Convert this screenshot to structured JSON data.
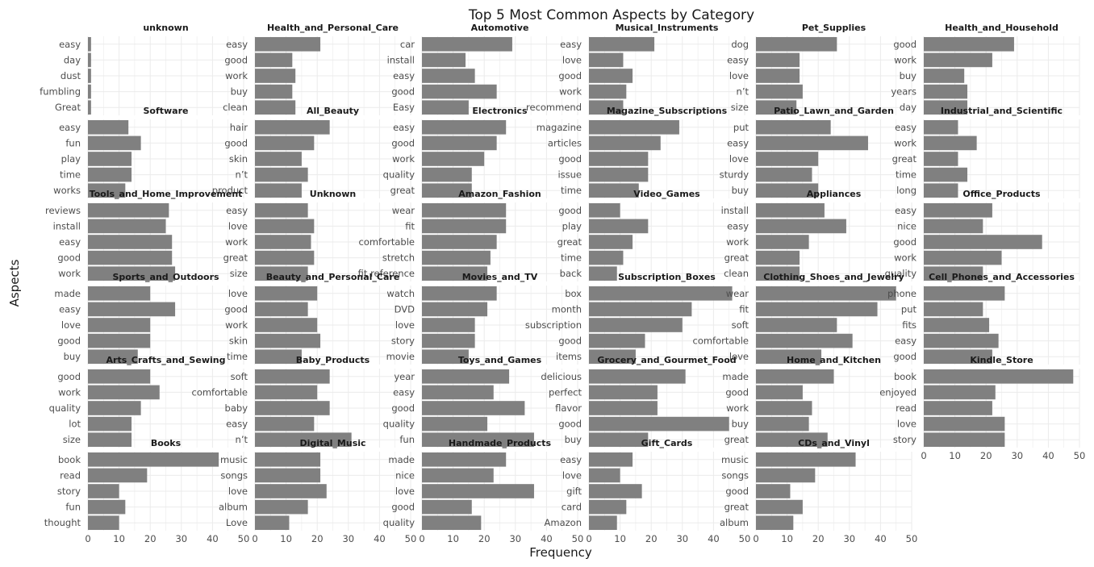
{
  "chart_data": {
    "type": "bar",
    "orientation": "horizontal",
    "title": "Top 5 Most Common Aspects by Category",
    "xlabel": "Frequency",
    "ylabel": "Aspects",
    "xlim": [
      0,
      50
    ],
    "x_ticks": [
      0,
      10,
      20,
      30,
      40,
      50
    ],
    "grid": true,
    "bar_color": "#808080",
    "grid_color": "#ebebeb",
    "facets": [
      {
        "title": "unknown",
        "categories": [
          "easy",
          "day",
          "dust",
          "fumbling",
          "Great"
        ],
        "values": [
          1,
          1,
          1,
          1,
          1
        ]
      },
      {
        "title": "Health_and_Personal_Care",
        "categories": [
          "easy",
          "good",
          "work",
          "buy",
          "clean"
        ],
        "values": [
          21,
          12,
          13,
          12,
          13
        ]
      },
      {
        "title": "Automotive",
        "categories": [
          "car",
          "install",
          "easy",
          "good",
          "Easy"
        ],
        "values": [
          29,
          14,
          17,
          24,
          15
        ]
      },
      {
        "title": "Musical_Instruments",
        "categories": [
          "easy",
          "love",
          "good",
          "work",
          "recommend"
        ],
        "values": [
          21,
          11,
          14,
          12,
          11
        ]
      },
      {
        "title": "Pet_Supplies",
        "categories": [
          "dog",
          "easy",
          "love",
          "n’t",
          "size"
        ],
        "values": [
          26,
          14,
          14,
          15,
          13
        ]
      },
      {
        "title": "Health_and_Household",
        "categories": [
          "good",
          "work",
          "buy",
          "years",
          "day"
        ],
        "values": [
          29,
          22,
          13,
          14,
          14
        ]
      },
      {
        "title": "Software",
        "categories": [
          "easy",
          "fun",
          "play",
          "time",
          "works"
        ],
        "values": [
          13,
          17,
          14,
          14,
          12
        ]
      },
      {
        "title": "All_Beauty",
        "categories": [
          "hair",
          "good",
          "skin",
          "n’t",
          "product"
        ],
        "values": [
          24,
          19,
          15,
          17,
          15
        ]
      },
      {
        "title": "Electronics",
        "categories": [
          "easy",
          "good",
          "work",
          "quality",
          "great"
        ],
        "values": [
          27,
          24,
          20,
          16,
          16
        ]
      },
      {
        "title": "Magazine_Subscriptions",
        "categories": [
          "magazine",
          "articles",
          "good",
          "issue",
          "time"
        ],
        "values": [
          29,
          23,
          19,
          19,
          16
        ]
      },
      {
        "title": "Patio_Lawn_and_Garden",
        "categories": [
          "put",
          "easy",
          "love",
          "sturdy",
          "buy"
        ],
        "values": [
          24,
          36,
          20,
          18,
          20
        ]
      },
      {
        "title": "Industrial_and_Scientific",
        "categories": [
          "easy",
          "work",
          "great",
          "time",
          "long"
        ],
        "values": [
          11,
          17,
          11,
          14,
          11
        ]
      },
      {
        "title": "Tools_and_Home_Improvement",
        "categories": [
          "reviews",
          "install",
          "easy",
          "good",
          "work"
        ],
        "values": [
          26,
          25,
          27,
          27,
          28
        ]
      },
      {
        "title": "Unknown",
        "categories": [
          "easy",
          "love",
          "work",
          "great",
          "size"
        ],
        "values": [
          17,
          19,
          18,
          19,
          17
        ]
      },
      {
        "title": "Amazon_Fashion",
        "categories": [
          "wear",
          "fit",
          "comfortable",
          "stretch",
          "fit reference"
        ],
        "values": [
          27,
          27,
          24,
          22,
          21
        ]
      },
      {
        "title": "Video_Games",
        "categories": [
          "good",
          "play",
          "great",
          "time",
          "back"
        ],
        "values": [
          10,
          19,
          14,
          11,
          9
        ]
      },
      {
        "title": "Appliances",
        "categories": [
          "install",
          "easy",
          "work",
          "great",
          "clean"
        ],
        "values": [
          22,
          29,
          17,
          14,
          14
        ]
      },
      {
        "title": "Office_Products",
        "categories": [
          "easy",
          "nice",
          "good",
          "work",
          "quality"
        ],
        "values": [
          22,
          19,
          38,
          25,
          19
        ]
      },
      {
        "title": "Sports_and_Outdoors",
        "categories": [
          "made",
          "easy",
          "love",
          "good",
          "buy"
        ],
        "values": [
          20,
          28,
          20,
          20,
          16
        ]
      },
      {
        "title": "Beauty_and_Personal_Care",
        "categories": [
          "love",
          "good",
          "work",
          "skin",
          "time"
        ],
        "values": [
          20,
          17,
          20,
          21,
          15
        ]
      },
      {
        "title": "Movies_and_TV",
        "categories": [
          "watch",
          "DVD",
          "love",
          "story",
          "movie"
        ],
        "values": [
          24,
          21,
          17,
          17,
          15
        ]
      },
      {
        "title": "Subscription_Boxes",
        "categories": [
          "box",
          "month",
          "subscription",
          "good",
          "items"
        ],
        "values": [
          46,
          33,
          30,
          18,
          15
        ]
      },
      {
        "title": "Clothing_Shoes_and_Jewelry",
        "categories": [
          "wear",
          "fit",
          "soft",
          "comfortable",
          "love"
        ],
        "values": [
          45,
          39,
          26,
          31,
          21
        ]
      },
      {
        "title": "Cell_Phones_and_Accessories",
        "categories": [
          "phone",
          "put",
          "fits",
          "easy",
          "good"
        ],
        "values": [
          26,
          19,
          21,
          24,
          22
        ]
      },
      {
        "title": "Arts_Crafts_and_Sewing",
        "categories": [
          "good",
          "work",
          "quality",
          "lot",
          "size"
        ],
        "values": [
          20,
          23,
          17,
          14,
          14
        ]
      },
      {
        "title": "Baby_Products",
        "categories": [
          "soft",
          "comfortable",
          "baby",
          "easy",
          "n’t"
        ],
        "values": [
          24,
          20,
          24,
          19,
          31
        ]
      },
      {
        "title": "Toys_and_Games",
        "categories": [
          "year",
          "easy",
          "good",
          "quality",
          "fun"
        ],
        "values": [
          28,
          23,
          33,
          21,
          36
        ]
      },
      {
        "title": "Grocery_and_Gourmet_Food",
        "categories": [
          "delicious",
          "perfect",
          "flavor",
          "good",
          "buy"
        ],
        "values": [
          31,
          22,
          22,
          45,
          19
        ]
      },
      {
        "title": "Home_and_Kitchen",
        "categories": [
          "made",
          "good",
          "work",
          "buy",
          "great"
        ],
        "values": [
          25,
          15,
          18,
          17,
          23
        ]
      },
      {
        "title": "Kindle_Store",
        "categories": [
          "book",
          "enjoyed",
          "read",
          "love",
          "story"
        ],
        "values": [
          48,
          23,
          22,
          26,
          26
        ]
      },
      {
        "title": "Books",
        "categories": [
          "book",
          "read",
          "story",
          "fun",
          "thought"
        ],
        "values": [
          42,
          19,
          10,
          12,
          10
        ]
      },
      {
        "title": "Digital_Music",
        "categories": [
          "music",
          "songs",
          "love",
          "album",
          "Love"
        ],
        "values": [
          21,
          21,
          23,
          17,
          11
        ]
      },
      {
        "title": "Handmade_Products",
        "categories": [
          "made",
          "nice",
          "love",
          "good",
          "quality"
        ],
        "values": [
          27,
          23,
          36,
          16,
          19
        ]
      },
      {
        "title": "Gift_Cards",
        "categories": [
          "easy",
          "love",
          "gift",
          "card",
          "Amazon"
        ],
        "values": [
          14,
          10,
          17,
          12,
          9
        ]
      },
      {
        "title": "CDs_and_Vinyl",
        "categories": [
          "music",
          "songs",
          "good",
          "great",
          "album"
        ],
        "values": [
          32,
          19,
          11,
          15,
          12
        ]
      }
    ]
  }
}
